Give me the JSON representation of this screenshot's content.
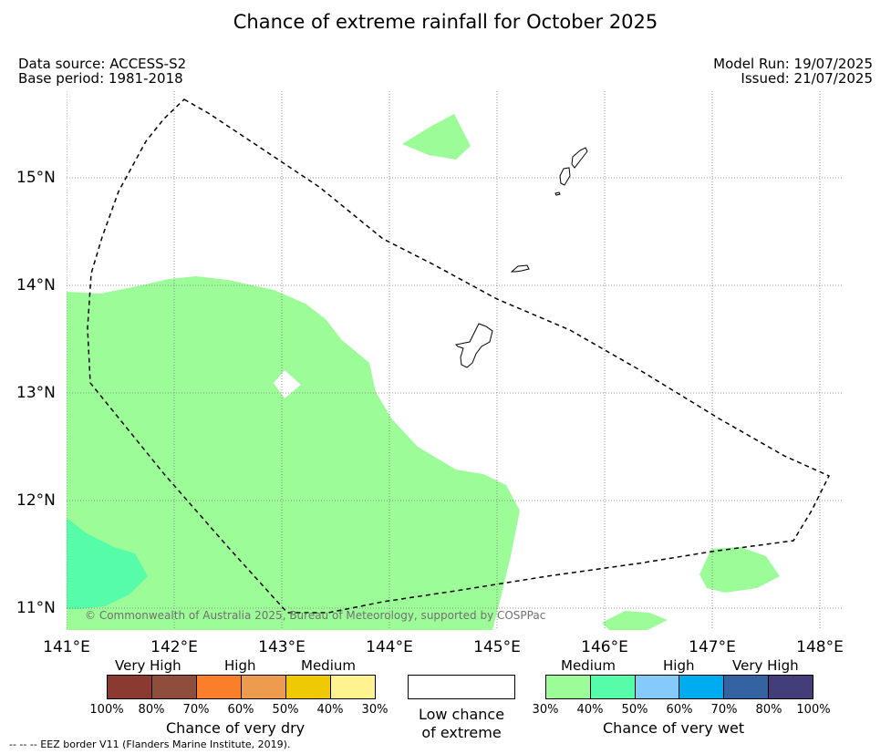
{
  "title": "Chance of extreme rainfall for October 2025",
  "header": {
    "data_source": "Data source: ACCESS-S2",
    "base_period": "Base period: 1981-2018",
    "model_run": "Model Run: 19/07/2025",
    "issued": "Issued: 21/07/2025"
  },
  "map": {
    "lon_labels": [
      "141°E",
      "142°E",
      "143°E",
      "144°E",
      "145°E",
      "146°E",
      "147°E",
      "148°E"
    ],
    "lat_labels": [
      "15°N",
      "14°N",
      "13°N",
      "12°N",
      "11°N"
    ],
    "copyright": "© Commonwealth of Australia 2025, Bureau of Meteorology, supported by COSPPac",
    "colors": {
      "medium_wet": "#9cfc98",
      "high_wet": "#57fca9",
      "coast": "#000000",
      "eez": "#000000"
    }
  },
  "legend": {
    "dry": {
      "headers": [
        "Very High",
        "High",
        "Medium"
      ],
      "colors": [
        "#8b3a31",
        "#8f4e3c",
        "#fb7f2a",
        "#ec9b4f",
        "#efc904",
        "#fff38f"
      ],
      "ticks": [
        "100%",
        "80%",
        "70%",
        "60%",
        "50%",
        "40%",
        "30%"
      ],
      "caption": "Chance of very dry"
    },
    "low": {
      "caption_line1": "Low chance",
      "caption_line2": "of extreme"
    },
    "wet": {
      "headers": [
        "Medium",
        "High",
        "Very High"
      ],
      "colors": [
        "#9cfc98",
        "#57fca9",
        "#84cbfc",
        "#00acf0",
        "#3562a0",
        "#433d7a"
      ],
      "ticks": [
        "30%",
        "40%",
        "50%",
        "60%",
        "70%",
        "80%",
        "100%"
      ],
      "caption": "Chance of very wet"
    },
    "eez_note": "--  --  -- EEZ border V11 (Flanders Marine Institute, 2019)."
  }
}
